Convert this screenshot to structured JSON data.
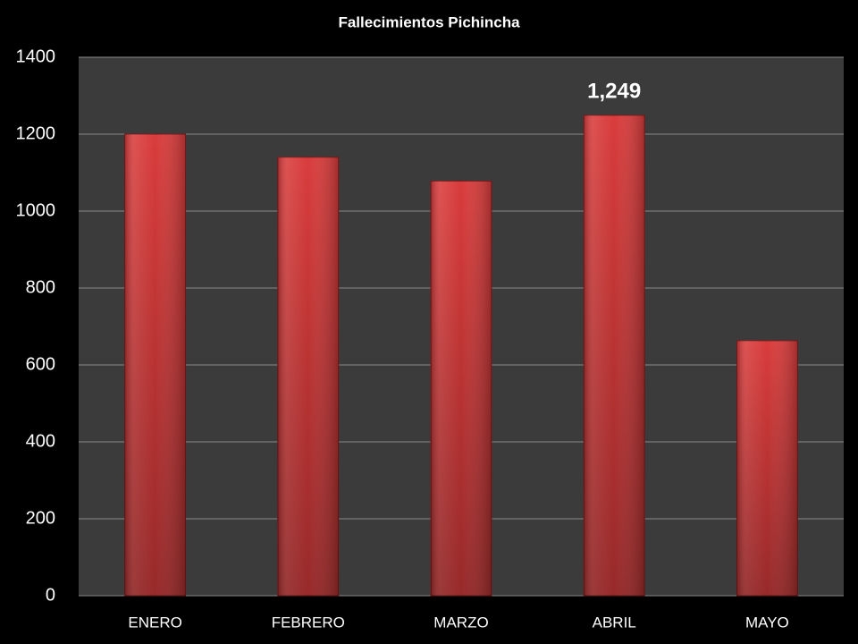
{
  "chart_data": {
    "type": "bar",
    "title": "Fallecimientos Pichincha",
    "categories": [
      "ENERO",
      "FEBRERO",
      "MARZO",
      "ABRIL",
      "MAYO"
    ],
    "values": [
      1200,
      1140,
      1078,
      1249,
      663
    ],
    "value_labels": [
      null,
      null,
      null,
      "1,249",
      null
    ],
    "color": "#d93b3b",
    "ylim": [
      0,
      1400
    ],
    "yticks": [
      0,
      200,
      400,
      600,
      800,
      1000,
      1200,
      1400
    ],
    "grid": true
  }
}
